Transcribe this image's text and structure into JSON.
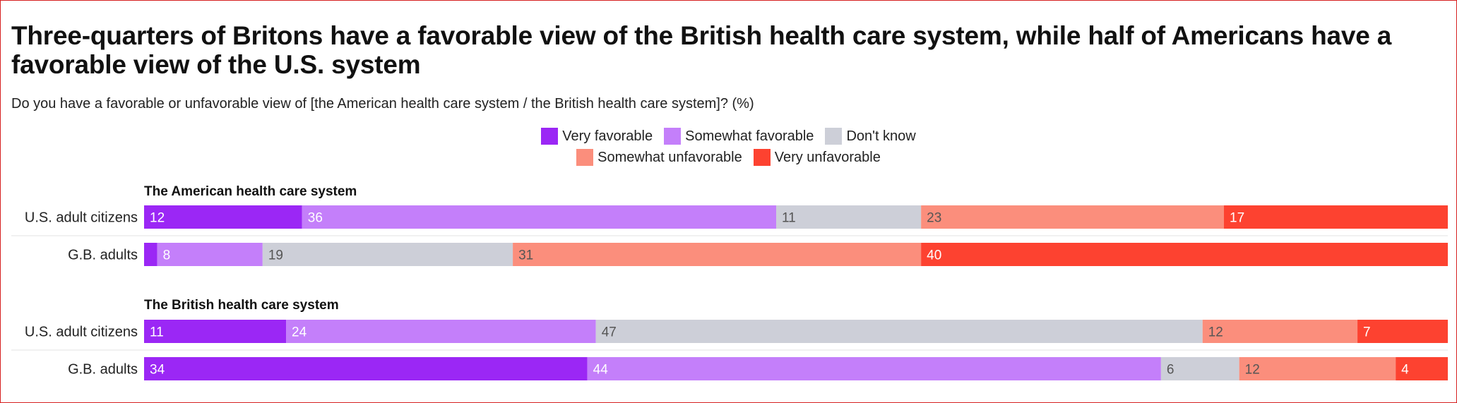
{
  "title": "Three-quarters of Britons have a favorable view of the British health care system, while half of Americans have a favorable view of the U.S. system",
  "subtitle": "Do you have a favorable or unfavorable view of [the American health care system / the British health care system]? (%)",
  "chart_data": {
    "type": "bar",
    "orientation": "horizontal-stacked-100",
    "xlim": [
      0,
      100
    ],
    "legend": [
      {
        "name": "Very favorable",
        "color": "#9b27f5",
        "label_color": "#ffffff"
      },
      {
        "name": "Somewhat favorable",
        "color": "#c47ffa",
        "label_color": "#ffffff"
      },
      {
        "name": "Don't know",
        "color": "#cdcfd8",
        "label_color": "#555555"
      },
      {
        "name": "Somewhat unfavorable",
        "color": "#fb8e7c",
        "label_color": "#555555"
      },
      {
        "name": "Very unfavorable",
        "color": "#fd4230",
        "label_color": "#ffffff"
      }
    ],
    "groups": [
      {
        "title": "The American health care system",
        "rows": [
          {
            "label": "U.S. adult citizens",
            "values": [
              12,
              36,
              11,
              23,
              17
            ]
          },
          {
            "label": "G.B. adults",
            "values": [
              1,
              8,
              19,
              31,
              40
            ],
            "value_labels": [
              "",
              "8",
              "19",
              "31",
              "40"
            ]
          }
        ]
      },
      {
        "title": "The British health care system",
        "rows": [
          {
            "label": "U.S. adult citizens",
            "values": [
              11,
              24,
              47,
              12,
              7
            ]
          },
          {
            "label": "G.B. adults",
            "values": [
              34,
              44,
              6,
              12,
              4
            ]
          }
        ]
      }
    ]
  }
}
